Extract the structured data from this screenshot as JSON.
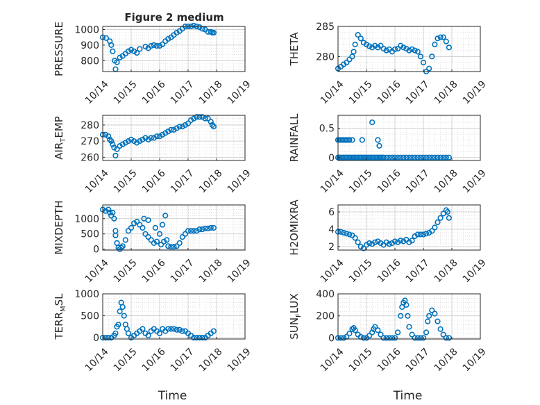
{
  "figure": {
    "title": "Figure 2 medium"
  },
  "chart_data": [
    {
      "type": "scatter",
      "title": "Figure 2 medium",
      "ylabel": "PRESSURE",
      "ylabel_parts": [
        {
          "t": "PRESSURE",
          "sub": false
        }
      ],
      "xlabel": "",
      "xlim": [
        "10/14",
        "10/19"
      ],
      "xticks": [
        "10/14",
        "10/15",
        "10/16",
        "10/17",
        "10/18",
        "10/19"
      ],
      "ylim": [
        730,
        1020
      ],
      "yticks": [
        800,
        900,
        1000
      ],
      "grid": true,
      "series": [
        {
          "x": [
            0,
            0.12,
            0.25,
            0.3,
            0.35,
            0.42,
            0.45,
            0.5,
            0.6,
            0.7,
            0.8,
            0.9,
            1.0,
            1.1,
            1.2,
            1.3,
            1.5,
            1.6,
            1.7,
            1.8,
            1.9,
            2.0,
            2.1,
            2.2,
            2.3,
            2.4,
            2.5,
            2.6,
            2.7,
            2.8,
            2.9,
            3.0,
            3.1,
            3.2,
            3.3,
            3.4,
            3.5,
            3.6,
            3.7,
            3.8,
            3.85,
            3.9
          ],
          "y": [
            950,
            945,
            925,
            900,
            860,
            800,
            745,
            790,
            820,
            830,
            845,
            860,
            870,
            860,
            850,
            875,
            890,
            880,
            895,
            900,
            895,
            895,
            905,
            925,
            940,
            950,
            965,
            980,
            990,
            1005,
            1020,
            1020,
            1020,
            1025,
            1020,
            1015,
            1005,
            1000,
            985,
            985,
            980,
            980
          ]
        }
      ]
    },
    {
      "type": "scatter",
      "ylabel": "THETA",
      "ylabel_parts": [
        {
          "t": "THETA",
          "sub": false
        }
      ],
      "xlim": [
        "10/14",
        "10/19"
      ],
      "xticks": [
        "10/14",
        "10/15",
        "10/16",
        "10/17",
        "10/18",
        "10/19"
      ],
      "ylim": [
        277.5,
        285
      ],
      "yticks": [
        280,
        285
      ],
      "grid": true,
      "series": [
        {
          "x": [
            0,
            0.1,
            0.2,
            0.3,
            0.4,
            0.5,
            0.55,
            0.6,
            0.7,
            0.8,
            0.9,
            1.0,
            1.1,
            1.2,
            1.3,
            1.4,
            1.5,
            1.6,
            1.7,
            1.8,
            1.9,
            2.0,
            2.1,
            2.2,
            2.3,
            2.4,
            2.5,
            2.6,
            2.7,
            2.8,
            2.9,
            3.0,
            3.1,
            3.2,
            3.3,
            3.4,
            3.5,
            3.6,
            3.7,
            3.8,
            3.9
          ],
          "y": [
            278,
            278.3,
            278.7,
            279,
            279.5,
            280,
            280.8,
            282,
            283.6,
            283,
            282.3,
            282,
            281.7,
            281.5,
            281.8,
            281.5,
            281.8,
            281.3,
            281,
            281.2,
            280.8,
            281.2,
            281.3,
            281.8,
            281.5,
            281.3,
            281,
            281.2,
            281,
            280.8,
            280,
            279,
            277.5,
            278,
            280,
            282,
            283,
            283.2,
            283.2,
            282.5,
            281.5
          ]
        }
      ]
    },
    {
      "type": "scatter",
      "ylabel": "AIR_TEMP",
      "ylabel_parts": [
        {
          "t": "AIR",
          "sub": false
        },
        {
          "t": "T",
          "sub": true
        },
        {
          "t": "EMP",
          "sub": false
        }
      ],
      "xlim": [
        "10/14",
        "10/19"
      ],
      "xticks": [
        "10/14",
        "10/15",
        "10/16",
        "10/17",
        "10/18",
        "10/19"
      ],
      "ylim": [
        258,
        286
      ],
      "yticks": [
        260,
        270,
        280
      ],
      "grid": true,
      "series": [
        {
          "x": [
            0,
            0.1,
            0.2,
            0.25,
            0.3,
            0.35,
            0.4,
            0.45,
            0.5,
            0.6,
            0.7,
            0.8,
            0.9,
            1.0,
            1.1,
            1.2,
            1.3,
            1.4,
            1.5,
            1.6,
            1.7,
            1.8,
            1.9,
            2.0,
            2.1,
            2.2,
            2.3,
            2.4,
            2.5,
            2.6,
            2.7,
            2.8,
            2.9,
            3.0,
            3.1,
            3.2,
            3.3,
            3.4,
            3.5,
            3.6,
            3.7,
            3.8,
            3.85,
            3.9
          ],
          "y": [
            274,
            274,
            273,
            271,
            270,
            268,
            266,
            261,
            265,
            267,
            268,
            269,
            270,
            271,
            270,
            269,
            270,
            271,
            272,
            271,
            272,
            272,
            273,
            273,
            274,
            275,
            276,
            277,
            277,
            278,
            279,
            279,
            280,
            281,
            283,
            284,
            285,
            285,
            285,
            284,
            284,
            282,
            280,
            279
          ]
        }
      ]
    },
    {
      "type": "scatter",
      "ylabel": "RAINFALL",
      "ylabel_parts": [
        {
          "t": "RAINFALL",
          "sub": false
        }
      ],
      "xlim": [
        "10/14",
        "10/19"
      ],
      "xticks": [
        "10/14",
        "10/15",
        "10/16",
        "10/17",
        "10/18",
        "10/19"
      ],
      "ylim": [
        -0.05,
        0.72
      ],
      "yticks": [
        0,
        0.5
      ],
      "grid": true,
      "series": [
        {
          "x": [
            0,
            0.05,
            0.1,
            0.15,
            0.2,
            0.25,
            0.3,
            0.35,
            0.4,
            0.45,
            0.5,
            0.55,
            0.6,
            0.65,
            0.7,
            0.75,
            0.8,
            0.85,
            0.9,
            0.95,
            1.0,
            1.05,
            1.1,
            1.15,
            1.2,
            1.25,
            1.3,
            1.35,
            1.4,
            1.45,
            1.5,
            1.55,
            1.6,
            1.7,
            1.8,
            1.9,
            2.0,
            2.1,
            2.2,
            2.3,
            2.4,
            2.5,
            2.6,
            2.7,
            2.8,
            2.9,
            3.0,
            3.1,
            3.2,
            3.3,
            3.4,
            3.5,
            3.6,
            3.7,
            3.8,
            3.9,
            0,
            0.05,
            0.1,
            0.15,
            0.2,
            0.25,
            0.3,
            0.35,
            0.4,
            0.5,
            0.85,
            1.2,
            1.4,
            1.45
          ],
          "y": [
            0,
            0,
            0,
            0,
            0,
            0,
            0,
            0,
            0,
            0,
            0,
            0,
            0,
            0,
            0,
            0,
            0,
            0,
            0,
            0,
            0,
            0,
            0,
            0,
            0,
            0,
            0,
            0,
            0,
            0,
            0,
            0,
            0,
            0,
            0,
            0,
            0,
            0,
            0,
            0,
            0,
            0,
            0,
            0,
            0,
            0,
            0,
            0,
            0,
            0,
            0,
            0,
            0,
            0,
            0,
            0,
            0.3,
            0.3,
            0.3,
            0.3,
            0.3,
            0.3,
            0.3,
            0.3,
            0.3,
            0.3,
            0.3,
            0.6,
            0.3,
            0.2
          ]
        }
      ]
    },
    {
      "type": "scatter",
      "ylabel": "MIXDEPTH",
      "ylabel_parts": [
        {
          "t": "MIXDEPTH",
          "sub": false
        }
      ],
      "xlim": [
        "10/14",
        "10/19"
      ],
      "xticks": [
        "10/14",
        "10/15",
        "10/16",
        "10/17",
        "10/18",
        "10/19"
      ],
      "ylim": [
        -30,
        1450
      ],
      "yticks": [
        0,
        500,
        1000
      ],
      "grid": true,
      "series": [
        {
          "x": [
            0,
            0.1,
            0.2,
            0.25,
            0.3,
            0.35,
            0.4,
            0.45,
            0.5,
            0.55,
            0.6,
            0.65,
            0.7,
            0.8,
            0.9,
            1.0,
            1.1,
            1.2,
            1.3,
            1.4,
            1.5,
            1.6,
            1.7,
            1.8,
            1.9,
            2.0,
            2.1,
            2.2,
            2.3,
            2.4,
            2.5,
            2.6,
            2.7,
            2.8,
            2.9,
            3.0,
            3.1,
            3.2,
            3.3,
            3.4,
            3.5,
            3.6,
            3.7,
            3.8,
            3.9,
            0.45,
            1.45,
            1.6,
            1.85,
            2.05,
            2.15,
            2.25
          ],
          "y": [
            1300,
            1250,
            1300,
            1200,
            1100,
            1200,
            1000,
            600,
            200,
            50,
            0,
            50,
            100,
            300,
            600,
            700,
            850,
            900,
            800,
            700,
            500,
            400,
            300,
            200,
            250,
            500,
            800,
            1100,
            100,
            80,
            80,
            100,
            200,
            400,
            500,
            600,
            600,
            600,
            600,
            650,
            650,
            680,
            680,
            700,
            700,
            450,
            1000,
            950,
            700,
            150,
            250,
            300
          ]
        }
      ]
    },
    {
      "type": "scatter",
      "ylabel": "H2OMIXRA",
      "ylabel_parts": [
        {
          "t": "H2OMIXRA",
          "sub": false
        }
      ],
      "xlim": [
        "10/14",
        "10/19"
      ],
      "xticks": [
        "10/14",
        "10/15",
        "10/16",
        "10/17",
        "10/18",
        "10/19"
      ],
      "ylim": [
        1.6,
        6.8
      ],
      "yticks": [
        2,
        4,
        6
      ],
      "grid": true,
      "series": [
        {
          "x": [
            0,
            0.1,
            0.2,
            0.3,
            0.4,
            0.5,
            0.6,
            0.7,
            0.8,
            0.9,
            1.0,
            1.1,
            1.2,
            1.3,
            1.4,
            1.5,
            1.6,
            1.7,
            1.8,
            1.9,
            2.0,
            2.1,
            2.2,
            2.3,
            2.4,
            2.5,
            2.6,
            2.7,
            2.8,
            2.9,
            3.0,
            3.1,
            3.2,
            3.3,
            3.4,
            3.5,
            3.6,
            3.7,
            3.8,
            3.85,
            3.9
          ],
          "y": [
            3.7,
            3.7,
            3.6,
            3.5,
            3.4,
            3.3,
            3.0,
            2.5,
            2.0,
            1.8,
            2.2,
            2.4,
            2.3,
            2.5,
            2.6,
            2.4,
            2.2,
            2.5,
            2.3,
            2.4,
            2.6,
            2.5,
            2.7,
            2.6,
            2.8,
            2.5,
            2.7,
            3.2,
            3.4,
            3.4,
            3.4,
            3.5,
            3.6,
            3.8,
            4.2,
            4.8,
            5.3,
            5.8,
            6.2,
            6.0,
            5.3
          ]
        }
      ]
    },
    {
      "type": "scatter",
      "ylabel": "TERR_MSL",
      "ylabel_parts": [
        {
          "t": "TERR",
          "sub": false
        },
        {
          "t": "M",
          "sub": true
        },
        {
          "t": "SL",
          "sub": false
        }
      ],
      "xlabel": "Time",
      "xlim": [
        "10/14",
        "10/19"
      ],
      "xticks": [
        "10/14",
        "10/15",
        "10/16",
        "10/17",
        "10/18",
        "10/19"
      ],
      "ylim": [
        -30,
        1000
      ],
      "yticks": [
        0,
        500,
        1000
      ],
      "grid": true,
      "series": [
        {
          "x": [
            0,
            0.1,
            0.2,
            0.3,
            0.4,
            0.45,
            0.5,
            0.55,
            0.6,
            0.65,
            0.7,
            0.75,
            0.8,
            0.85,
            0.9,
            1.0,
            1.1,
            1.2,
            1.3,
            1.4,
            1.5,
            1.6,
            1.7,
            1.8,
            1.9,
            2.0,
            2.1,
            2.2,
            2.3,
            2.4,
            2.5,
            2.6,
            2.7,
            2.8,
            2.9,
            3.0,
            3.1,
            3.2,
            3.3,
            3.4,
            3.5,
            3.6,
            3.7,
            3.8,
            3.9
          ],
          "y": [
            0,
            0,
            0,
            0,
            50,
            100,
            250,
            300,
            600,
            800,
            700,
            500,
            300,
            200,
            100,
            0,
            50,
            100,
            150,
            200,
            100,
            50,
            150,
            200,
            150,
            100,
            200,
            150,
            200,
            200,
            200,
            180,
            180,
            150,
            150,
            100,
            50,
            0,
            0,
            0,
            0,
            0,
            50,
            100,
            150
          ]
        }
      ]
    },
    {
      "type": "scatter",
      "ylabel": "SUN_FLUX",
      "ylabel_parts": [
        {
          "t": "SUN",
          "sub": false
        },
        {
          "t": "F",
          "sub": true
        },
        {
          "t": "LUX",
          "sub": false
        }
      ],
      "xlabel": "Time",
      "xlim": [
        "10/14",
        "10/19"
      ],
      "xticks": [
        "10/14",
        "10/15",
        "10/16",
        "10/17",
        "10/18",
        "10/19"
      ],
      "ylim": [
        -10,
        400
      ],
      "yticks": [
        0,
        200,
        400
      ],
      "grid": true,
      "series": [
        {
          "x": [
            0,
            0.1,
            0.2,
            0.3,
            0.4,
            0.5,
            0.55,
            0.6,
            0.7,
            0.8,
            0.9,
            1.0,
            1.1,
            1.2,
            1.25,
            1.3,
            1.4,
            1.5,
            1.6,
            1.7,
            1.8,
            1.9,
            2.0,
            2.1,
            2.2,
            2.25,
            2.3,
            2.35,
            2.4,
            2.45,
            2.5,
            2.6,
            2.7,
            2.8,
            2.9,
            3.0,
            3.1,
            3.15,
            3.2,
            3.3,
            3.4,
            3.5,
            3.6,
            3.7,
            3.8,
            3.9
          ],
          "y": [
            0,
            0,
            0,
            10,
            40,
            80,
            90,
            70,
            30,
            10,
            0,
            0,
            20,
            50,
            80,
            100,
            70,
            30,
            0,
            0,
            0,
            0,
            0,
            50,
            200,
            280,
            320,
            340,
            300,
            200,
            100,
            30,
            0,
            0,
            0,
            0,
            50,
            150,
            200,
            250,
            220,
            150,
            80,
            30,
            0,
            0
          ]
        }
      ]
    }
  ]
}
